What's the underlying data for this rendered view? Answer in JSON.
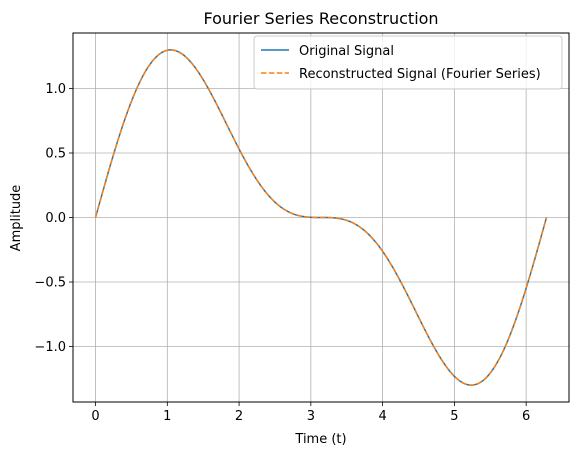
{
  "chart_data": {
    "type": "line",
    "title": "Fourier Series Reconstruction",
    "xlabel": "Time (t)",
    "ylabel": "Amplitude",
    "xlim": [
      -0.314,
      6.597
    ],
    "ylim": [
      -1.43,
      1.43
    ],
    "xticks": [
      0,
      1,
      2,
      3,
      4,
      5,
      6
    ],
    "xtick_labels": [
      "0",
      "1",
      "2",
      "3",
      "4",
      "5",
      "6"
    ],
    "yticks": [
      -1.0,
      -0.5,
      0.0,
      0.5,
      1.0
    ],
    "ytick_labels": [
      "−1.0",
      "−0.5",
      "0.0",
      "0.5",
      "1.0"
    ],
    "grid": true,
    "legend_position": "upper right",
    "series": [
      {
        "name": "Original Signal",
        "color": "#1f77b4",
        "linestyle": "solid",
        "function": "sin(t) + 0.5*sin(2t)",
        "x_range": [
          0,
          6.283
        ],
        "key_points": [
          [
            0,
            0.0
          ],
          [
            1.047,
            1.299
          ],
          [
            2.094,
            0.433
          ],
          [
            3.142,
            0.0
          ],
          [
            4.189,
            -0.433
          ],
          [
            5.236,
            -1.299
          ],
          [
            6.283,
            0.0
          ]
        ]
      },
      {
        "name": "Reconstructed Signal (Fourier Series)",
        "color": "#ff7f0e",
        "linestyle": "dashed",
        "function": "sin(t) + 0.5*sin(2t)",
        "x_range": [
          0,
          6.283
        ],
        "key_points": [
          [
            0,
            0.0
          ],
          [
            1.047,
            1.299
          ],
          [
            2.094,
            0.433
          ],
          [
            3.142,
            0.0
          ],
          [
            4.189,
            -0.433
          ],
          [
            5.236,
            -1.299
          ],
          [
            6.283,
            0.0
          ]
        ]
      }
    ]
  }
}
